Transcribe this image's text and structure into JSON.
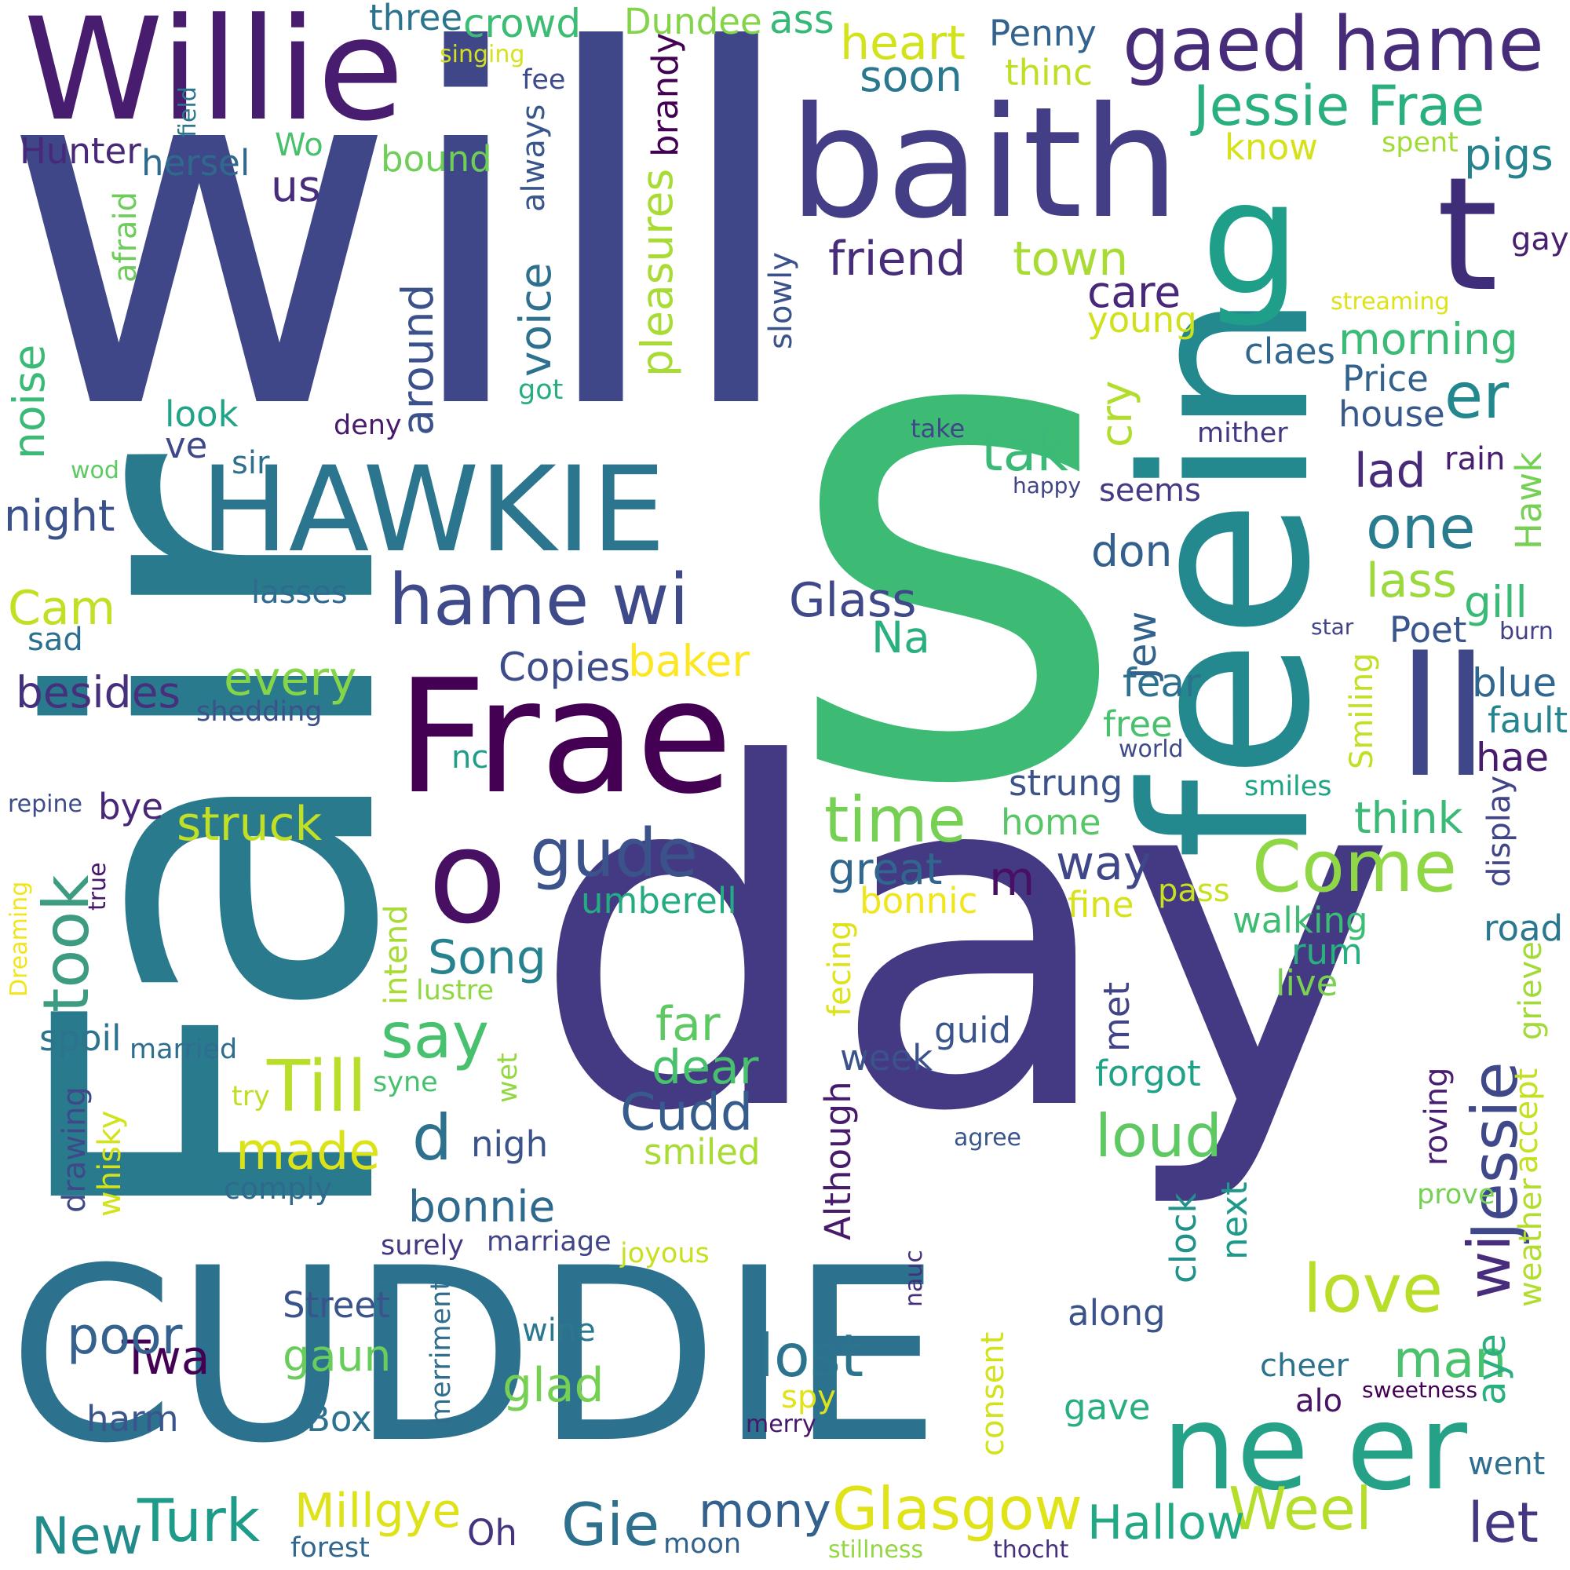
{
  "words": [
    {
      "text": "s",
      "color": "#3dbb74"
    },
    {
      "text": "day",
      "color": "#433a83"
    },
    {
      "text": "will",
      "color": "#3f4788"
    },
    {
      "text": "Fair",
      "color": "#2a7a8e"
    },
    {
      "text": "CUDDIE",
      "color": "#2c728e"
    },
    {
      "text": "feein",
      "color": "#23898e"
    },
    {
      "text": "Willie",
      "color": "#481c6e"
    },
    {
      "text": "baith",
      "color": "#433e85"
    },
    {
      "text": "HAWKIE",
      "color": "#2b758e"
    },
    {
      "text": "Frae",
      "color": "#440154"
    },
    {
      "text": "ne er",
      "color": "#25a187"
    },
    {
      "text": "gaed hame",
      "color": "#472c7a"
    },
    {
      "text": "hame wi",
      "color": "#3e4a89"
    },
    {
      "text": "Jessie Frae",
      "color": "#2ab07f"
    },
    {
      "text": "o",
      "color": "#471063"
    },
    {
      "text": "gude",
      "color": "#3b528b"
    },
    {
      "text": "ll",
      "color": "#3f4788"
    },
    {
      "text": "Come",
      "color": "#8fd744"
    },
    {
      "text": "Jessie",
      "color": "#3f4889"
    },
    {
      "text": "t",
      "color": "#3f2d7a"
    },
    {
      "text": "g",
      "color": "#1f9e89"
    },
    {
      "text": "love",
      "color": "#b8de29"
    },
    {
      "text": "time",
      "color": "#75d054"
    },
    {
      "text": "Glasgow",
      "color": "#dfe318"
    },
    {
      "text": "Weel",
      "color": "#b5de2b"
    },
    {
      "text": "Turk",
      "color": "#1e9c89"
    },
    {
      "text": "lost",
      "color": "#2c738e"
    },
    {
      "text": "loud",
      "color": "#5ec962"
    },
    {
      "text": "say",
      "color": "#48c16e"
    },
    {
      "text": "Till",
      "color": "#b8de29"
    },
    {
      "text": "took",
      "color": "#3c9b80"
    },
    {
      "text": "Gie",
      "color": "#2d718e"
    },
    {
      "text": "Hallow",
      "color": "#22a884"
    },
    {
      "text": "let",
      "color": "#453781"
    },
    {
      "text": "wi",
      "color": "#472d7b"
    },
    {
      "text": "er",
      "color": "#23888e"
    },
    {
      "text": "man",
      "color": "#4ac16d"
    },
    {
      "text": "lass",
      "color": "#9bd93c"
    },
    {
      "text": "one",
      "color": "#297b8e"
    },
    {
      "text": "tak",
      "color": "#3aba76"
    },
    {
      "text": "Twa",
      "color": "#440154"
    },
    {
      "text": "poor",
      "color": "#34618d"
    },
    {
      "text": "made",
      "color": "#dbe318"
    },
    {
      "text": "d",
      "color": "#2d718e"
    },
    {
      "text": "New",
      "color": "#228c8d"
    },
    {
      "text": "Millgye",
      "color": "#dde318"
    },
    {
      "text": "mony",
      "color": "#34608d"
    },
    {
      "text": "Cudd",
      "color": "#365c8d"
    },
    {
      "text": "dear",
      "color": "#48c16e"
    },
    {
      "text": "far",
      "color": "#5ec962"
    },
    {
      "text": "gaun",
      "color": "#68cd5b"
    },
    {
      "text": "glad",
      "color": "#75d054"
    },
    {
      "text": "bonnie",
      "color": "#30698e"
    },
    {
      "text": "Song",
      "color": "#26828e"
    },
    {
      "text": "great",
      "color": "#31668e"
    },
    {
      "text": "way",
      "color": "#3f4788"
    },
    {
      "text": "m",
      "color": "#471063"
    },
    {
      "text": "struck",
      "color": "#c0df25"
    },
    {
      "text": "baker",
      "color": "#fde725"
    },
    {
      "text": "Copies",
      "color": "#3e4c8a"
    },
    {
      "text": "Glass",
      "color": "#3f4889"
    },
    {
      "text": "Na",
      "color": "#2ab07f"
    },
    {
      "text": "every",
      "color": "#86d549"
    },
    {
      "text": "besides",
      "color": "#46307e"
    },
    {
      "text": "Cam",
      "color": "#c2df23"
    },
    {
      "text": "night",
      "color": "#3b518b"
    },
    {
      "text": "noise",
      "color": "#3aba76"
    },
    {
      "text": "around",
      "color": "#3b518b"
    },
    {
      "text": "voice",
      "color": "#2d718e"
    },
    {
      "text": "pleasures",
      "color": "#a8db34"
    },
    {
      "text": "slowly",
      "color": "#3b528b"
    },
    {
      "text": "friend",
      "color": "#472c7a"
    },
    {
      "text": "town",
      "color": "#a8db34"
    },
    {
      "text": "care",
      "color": "#482878"
    },
    {
      "text": "young",
      "color": "#d0e11c"
    },
    {
      "text": "cry",
      "color": "#b2dd2d"
    },
    {
      "text": "don",
      "color": "#34608d"
    },
    {
      "text": "Jew",
      "color": "#33638d"
    },
    {
      "text": "fear",
      "color": "#2d718e"
    },
    {
      "text": "free",
      "color": "#4ac16d"
    },
    {
      "text": "world",
      "color": "#3e4989"
    },
    {
      "text": "strung",
      "color": "#3b528b"
    },
    {
      "text": "home",
      "color": "#56c667"
    },
    {
      "text": "bonnic",
      "color": "#f1e51d"
    },
    {
      "text": "fine",
      "color": "#d8e219"
    },
    {
      "text": "pass",
      "color": "#c8e020"
    },
    {
      "text": "walking",
      "color": "#3dbc74"
    },
    {
      "text": "rum",
      "color": "#2ab07f"
    },
    {
      "text": "live",
      "color": "#7ad151"
    },
    {
      "text": "forgot",
      "color": "#1fa287"
    },
    {
      "text": "met",
      "color": "#414487"
    },
    {
      "text": "guid",
      "color": "#3a548c"
    },
    {
      "text": "week",
      "color": "#3b528b"
    },
    {
      "text": "Although",
      "color": "#481a6c"
    },
    {
      "text": "agree",
      "color": "#39568c"
    },
    {
      "text": "clock",
      "color": "#21918c"
    },
    {
      "text": "next",
      "color": "#1f9a8a"
    },
    {
      "text": "along",
      "color": "#3b528b"
    },
    {
      "text": "cheer",
      "color": "#2c728e"
    },
    {
      "text": "alo",
      "color": "#481467"
    },
    {
      "text": "sweetness",
      "color": "#440154"
    },
    {
      "text": "gave",
      "color": "#29af7f"
    },
    {
      "text": "consent",
      "color": "#d2e21b"
    },
    {
      "text": "went",
      "color": "#2e6e8e"
    },
    {
      "text": "aye",
      "color": "#2ab07f"
    },
    {
      "text": "weather",
      "color": "#b2dd2d"
    },
    {
      "text": "accept",
      "color": "#c5e021"
    },
    {
      "text": "grieve",
      "color": "#a2da37"
    },
    {
      "text": "prove",
      "color": "#75d054"
    },
    {
      "text": "roving",
      "color": "#481f70"
    },
    {
      "text": "road",
      "color": "#2a788e"
    },
    {
      "text": "display",
      "color": "#414487"
    },
    {
      "text": "think",
      "color": "#3aba76"
    },
    {
      "text": "smiles",
      "color": "#20a486"
    },
    {
      "text": "Smiling",
      "color": "#c2df23"
    },
    {
      "text": "hae",
      "color": "#481b6d"
    },
    {
      "text": "fault",
      "color": "#25848e"
    },
    {
      "text": "blue",
      "color": "#31678e"
    },
    {
      "text": "burn",
      "color": "#424186"
    },
    {
      "text": "star",
      "color": "#414487"
    },
    {
      "text": "Poet",
      "color": "#39568c"
    },
    {
      "text": "gill",
      "color": "#3aba76"
    },
    {
      "text": "Hawk",
      "color": "#75d054"
    },
    {
      "text": "lad",
      "color": "#472a7a"
    },
    {
      "text": "rain",
      "color": "#481f70"
    },
    {
      "text": "seems",
      "color": "#443b84"
    },
    {
      "text": "happy",
      "color": "#414487"
    },
    {
      "text": "mither",
      "color": "#453781"
    },
    {
      "text": "house",
      "color": "#38588c"
    },
    {
      "text": "Price",
      "color": "#33638d"
    },
    {
      "text": "claes",
      "color": "#31678e"
    },
    {
      "text": "morning",
      "color": "#3bbb75"
    },
    {
      "text": "streaming",
      "color": "#dde318"
    },
    {
      "text": "gay",
      "color": "#481f70"
    },
    {
      "text": "pigs",
      "color": "#25838e"
    },
    {
      "text": "spent",
      "color": "#a2da37"
    },
    {
      "text": "know",
      "color": "#d5e21a"
    },
    {
      "text": "Penny",
      "color": "#33638d"
    },
    {
      "text": "thinc",
      "color": "#bddf26"
    },
    {
      "text": "heart",
      "color": "#d2e21b"
    },
    {
      "text": "soon",
      "color": "#2a788e"
    },
    {
      "text": "ass",
      "color": "#37b878"
    },
    {
      "text": "Dundee",
      "color": "#84d44b"
    },
    {
      "text": "crowd",
      "color": "#3dbc74"
    },
    {
      "text": "three",
      "color": "#2c738e"
    },
    {
      "text": "singing",
      "color": "#d5e21a"
    },
    {
      "text": "fee",
      "color": "#3e4a89"
    },
    {
      "text": "field",
      "color": "#2a768e"
    },
    {
      "text": "always",
      "color": "#39568c"
    },
    {
      "text": "brandy",
      "color": "#440154"
    },
    {
      "text": "bound",
      "color": "#6ece58"
    },
    {
      "text": "Wo",
      "color": "#48c16e"
    },
    {
      "text": "hersel",
      "color": "#30698e"
    },
    {
      "text": "Hunter",
      "color": "#482878"
    },
    {
      "text": "us",
      "color": "#472d7b"
    },
    {
      "text": "afraid",
      "color": "#6ccd5a"
    },
    {
      "text": "look",
      "color": "#20a386"
    },
    {
      "text": "ve",
      "color": "#3f4889"
    },
    {
      "text": "deny",
      "color": "#481a6c"
    },
    {
      "text": "got",
      "color": "#27ad81"
    },
    {
      "text": "wod",
      "color": "#5ec962"
    },
    {
      "text": "sir",
      "color": "#2d708e"
    },
    {
      "text": "take",
      "color": "#3f4788"
    },
    {
      "text": "lasses",
      "color": "#2f6b8e"
    },
    {
      "text": "sad",
      "color": "#2d708e"
    },
    {
      "text": "shedding",
      "color": "#3b528b"
    },
    {
      "text": "repine",
      "color": "#3e4c8a"
    },
    {
      "text": "bye",
      "color": "#482777"
    },
    {
      "text": "true",
      "color": "#481668"
    },
    {
      "text": "Dreaming",
      "color": "#f1e51d"
    },
    {
      "text": "spoil",
      "color": "#2c738e"
    },
    {
      "text": "married",
      "color": "#2e6e8e"
    },
    {
      "text": "drawing",
      "color": "#3e4989"
    },
    {
      "text": "whisky",
      "color": "#d2e21b"
    },
    {
      "text": "try",
      "color": "#bddf26"
    },
    {
      "text": "syne",
      "color": "#48c16e"
    },
    {
      "text": "comply",
      "color": "#30698e"
    },
    {
      "text": "intend",
      "color": "#a8db34"
    },
    {
      "text": "lustre",
      "color": "#90d743"
    },
    {
      "text": "wet",
      "color": "#93d741"
    },
    {
      "text": "nigh",
      "color": "#3b528b"
    },
    {
      "text": "smiled",
      "color": "#a8db34"
    },
    {
      "text": "umberell",
      "color": "#25ab82"
    },
    {
      "text": "nc",
      "color": "#1f9f88"
    },
    {
      "text": "fecing",
      "color": "#dde318"
    },
    {
      "text": "surely",
      "color": "#453781"
    },
    {
      "text": "marriage",
      "color": "#414487"
    },
    {
      "text": "joyous",
      "color": "#c8e020"
    },
    {
      "text": "merriment",
      "color": "#2f6c8e"
    },
    {
      "text": "Street",
      "color": "#3a538b"
    },
    {
      "text": "Box",
      "color": "#2c728e"
    },
    {
      "text": "harm",
      "color": "#3a548c"
    },
    {
      "text": "wine",
      "color": "#2a788e"
    },
    {
      "text": "spy",
      "color": "#dfe318"
    },
    {
      "text": "merry",
      "color": "#481668"
    },
    {
      "text": "nauc",
      "color": "#46307e"
    },
    {
      "text": "forest",
      "color": "#31668e"
    },
    {
      "text": "Oh",
      "color": "#46337f"
    },
    {
      "text": "moon",
      "color": "#33638d"
    },
    {
      "text": "stillness",
      "color": "#93d741"
    },
    {
      "text": "thocht",
      "color": "#46307e"
    }
  ]
}
